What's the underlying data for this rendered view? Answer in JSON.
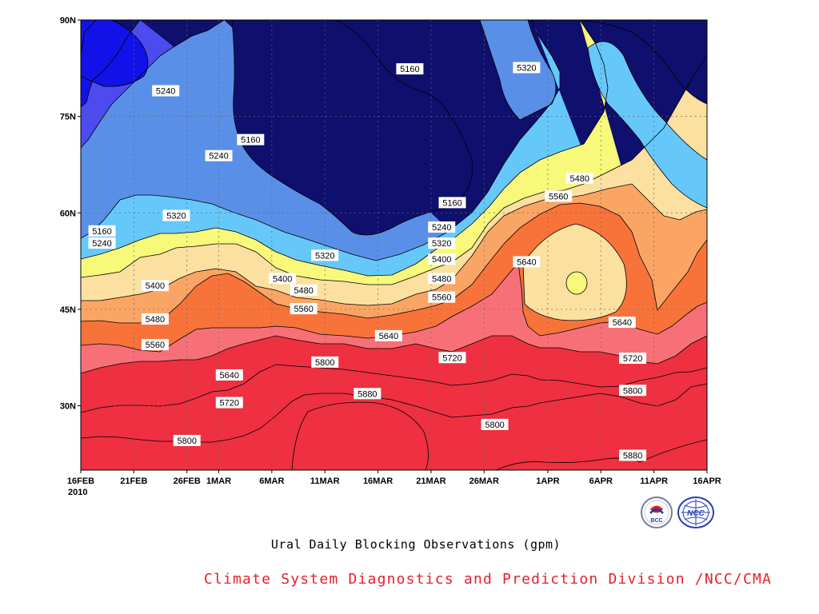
{
  "chart_data": {
    "type": "contour",
    "title": "Ural Daily Blocking Observations (gpm)",
    "credit": "Climate System Diagnostics and Prediction Division /NCC/CMA",
    "logos": [
      "BCC",
      "NCC"
    ],
    "x_axis": {
      "start": "2010-02-16",
      "end": "2010-04-16",
      "year_label": "2010",
      "ticks": [
        {
          "date": "2010-02-16",
          "label": "16FEB"
        },
        {
          "date": "2010-02-21",
          "label": "21FEB"
        },
        {
          "date": "2010-02-26",
          "label": "26FEB"
        },
        {
          "date": "2010-03-01",
          "label": "1MAR"
        },
        {
          "date": "2010-03-06",
          "label": "6MAR"
        },
        {
          "date": "2010-03-11",
          "label": "11MAR"
        },
        {
          "date": "2010-03-16",
          "label": "16MAR"
        },
        {
          "date": "2010-03-21",
          "label": "21MAR"
        },
        {
          "date": "2010-03-26",
          "label": "26MAR"
        },
        {
          "date": "2010-04-01",
          "label": "1APR"
        },
        {
          "date": "2010-04-06",
          "label": "6APR"
        },
        {
          "date": "2010-04-11",
          "label": "11APR"
        },
        {
          "date": "2010-04-16",
          "label": "16APR"
        }
      ]
    },
    "y_axis": {
      "ylim": [
        20,
        90
      ],
      "ticks": [
        {
          "value": 90,
          "label": "90N"
        },
        {
          "value": 75,
          "label": "75N"
        },
        {
          "value": 60,
          "label": "60N"
        },
        {
          "value": 45,
          "label": "45N"
        },
        {
          "value": 30,
          "label": "30N"
        }
      ]
    },
    "grid": true,
    "levels": [
      5160,
      5240,
      5320,
      5400,
      5480,
      5560,
      5640,
      5720,
      5800,
      5880
    ],
    "fill_colors": [
      "#0f0f6e",
      "#1212e8",
      "#4b4bee",
      "#5a8fe8",
      "#66c8fa",
      "#f8f87a",
      "#fbe0a0",
      "#fba565",
      "#f8733a",
      "#f77078",
      "#ee3040"
    ],
    "contour_labels": [
      {
        "text": "5160",
        "date": "2010-03-19",
        "lat": 82.4
      },
      {
        "text": "5320",
        "date": "2010-03-30",
        "lat": 82.6
      },
      {
        "text": "5240",
        "date": "2010-02-24",
        "lat": 79.0
      },
      {
        "text": "5160",
        "date": "2010-03-04",
        "lat": 71.4
      },
      {
        "text": "5240",
        "date": "2010-03-01",
        "lat": 68.9
      },
      {
        "text": "5480",
        "date": "2010-04-04",
        "lat": 65.4
      },
      {
        "text": "5560",
        "date": "2010-04-02",
        "lat": 62.6
      },
      {
        "text": "5160",
        "date": "2010-03-23",
        "lat": 61.6
      },
      {
        "text": "5320",
        "date": "2010-02-25",
        "lat": 59.6
      },
      {
        "text": "5240",
        "date": "2010-03-22",
        "lat": 57.8
      },
      {
        "text": "5160",
        "date": "2010-02-18",
        "lat": 57.2
      },
      {
        "text": "5320",
        "date": "2010-03-22",
        "lat": 55.3
      },
      {
        "text": "5240",
        "date": "2010-02-18",
        "lat": 55.3
      },
      {
        "text": "5320",
        "date": "2010-03-11",
        "lat": 53.4
      },
      {
        "text": "5400",
        "date": "2010-03-22",
        "lat": 52.8
      },
      {
        "text": "5640",
        "date": "2010-03-30",
        "lat": 52.4
      },
      {
        "text": "5400",
        "date": "2010-03-07",
        "lat": 49.8
      },
      {
        "text": "5480",
        "date": "2010-03-22",
        "lat": 49.8
      },
      {
        "text": "5400",
        "date": "2010-02-23",
        "lat": 48.7
      },
      {
        "text": "5480",
        "date": "2010-03-09",
        "lat": 48.0
      },
      {
        "text": "5560",
        "date": "2010-03-22",
        "lat": 46.9
      },
      {
        "text": "5560",
        "date": "2010-03-09",
        "lat": 45.1
      },
      {
        "text": "5480",
        "date": "2010-02-23",
        "lat": 43.5
      },
      {
        "text": "5640",
        "date": "2010-04-08",
        "lat": 43.0
      },
      {
        "text": "5640",
        "date": "2010-03-17",
        "lat": 40.9
      },
      {
        "text": "5560",
        "date": "2010-02-23",
        "lat": 39.5
      },
      {
        "text": "5720",
        "date": "2010-03-23",
        "lat": 37.5
      },
      {
        "text": "5720",
        "date": "2010-04-09",
        "lat": 37.4
      },
      {
        "text": "5800",
        "date": "2010-03-11",
        "lat": 36.8
      },
      {
        "text": "5640",
        "date": "2010-03-02",
        "lat": 34.8
      },
      {
        "text": "5800",
        "date": "2010-04-09",
        "lat": 32.4
      },
      {
        "text": "5880",
        "date": "2010-03-15",
        "lat": 31.9
      },
      {
        "text": "5720",
        "date": "2010-03-02",
        "lat": 30.5
      },
      {
        "text": "5800",
        "date": "2010-03-27",
        "lat": 27.1
      },
      {
        "text": "5800",
        "date": "2010-02-26",
        "lat": 24.6
      },
      {
        "text": "5880",
        "date": "2010-04-09",
        "lat": 22.3
      }
    ]
  }
}
